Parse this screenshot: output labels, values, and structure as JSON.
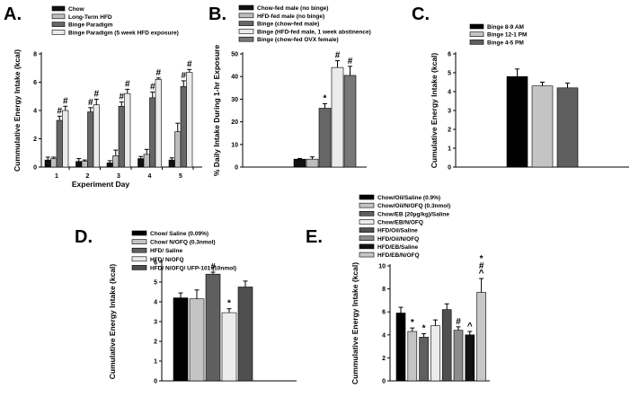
{
  "chart_data": [
    {
      "panel_label": "A.",
      "type": "bar",
      "xlabel": "Experiment Day",
      "ylabel": "Cummulative Energy Intake (kcal)",
      "ylim": [
        0,
        8
      ],
      "yticks": [
        "0",
        "2",
        "4",
        "6",
        "8"
      ],
      "categories": [
        "1",
        "2",
        "3",
        "4",
        "5"
      ],
      "series": [
        {
          "name": "Chow",
          "color": "#111111",
          "values": [
            0.5,
            0.4,
            0.3,
            0.6,
            0.5
          ],
          "errors": [
            0.2,
            0.2,
            0.15,
            0.15,
            0.15
          ]
        },
        {
          "name": "Long-Term HFD",
          "color": "#bdbdbd",
          "values": [
            0.6,
            0.4,
            0.8,
            0.9,
            2.5
          ],
          "errors": [
            0.1,
            0.1,
            0.4,
            0.35,
            0.6
          ]
        },
        {
          "name": "Binge Paradigm",
          "color": "#666666",
          "values": [
            3.3,
            3.9,
            4.3,
            4.9,
            5.7
          ],
          "errors": [
            0.3,
            0.3,
            0.3,
            0.4,
            0.4
          ]
        },
        {
          "name": "Binge Paradigm (5 week HFD exposure)",
          "color": "#ebebeb",
          "values": [
            4.0,
            4.4,
            5.2,
            6.2,
            6.7
          ],
          "errors": [
            0.3,
            0.4,
            0.3,
            0.1,
            0.2
          ]
        }
      ],
      "annotations": [
        {
          "category": "1",
          "series": "Binge Paradigm",
          "label": "#"
        },
        {
          "category": "1",
          "series": "Binge Paradigm (5 week HFD exposure)",
          "label": "#"
        },
        {
          "category": "2",
          "series": "Binge Paradigm",
          "label": "#"
        },
        {
          "category": "2",
          "series": "Binge Paradigm (5 week HFD exposure)",
          "label": "#"
        },
        {
          "category": "3",
          "series": "Binge Paradigm",
          "label": "#"
        },
        {
          "category": "3",
          "series": "Binge Paradigm (5 week HFD exposure)",
          "label": "#"
        },
        {
          "category": "4",
          "series": "Binge Paradigm",
          "label": "#"
        },
        {
          "category": "4",
          "series": "Binge Paradigm (5 week HFD exposure)",
          "label": "#"
        },
        {
          "category": "5",
          "series": "Binge Paradigm",
          "label": "#"
        },
        {
          "category": "5",
          "series": "Binge Paradigm (5 week HFD exposure)",
          "label": "#"
        }
      ]
    },
    {
      "panel_label": "B.",
      "type": "bar",
      "xlabel": "",
      "ylabel": "% Daily Intake During 1-hr Exposure",
      "ylim": [
        0,
        50
      ],
      "yticks": [
        "0",
        "10",
        "20",
        "30",
        "40",
        "50"
      ],
      "categories": [
        ""
      ],
      "series": [
        {
          "name": "Chow-fed male (no binge)",
          "color": "#111111",
          "values": [
            3.5
          ],
          "errors": [
            0.3
          ]
        },
        {
          "name": "HFD-fed male (no binge)",
          "color": "#bdbdbd",
          "values": [
            3.5
          ],
          "errors": [
            1
          ]
        },
        {
          "name": "Binge (chow-fed male)",
          "color": "#666666",
          "values": [
            26
          ],
          "errors": [
            2
          ]
        },
        {
          "name": "Binge (HFD-fed male, 1 week abstinence)",
          "color": "#ebebeb",
          "values": [
            44
          ],
          "errors": [
            3
          ]
        },
        {
          "name": "Binge (chow-fed OVX female)",
          "color": "#777777",
          "values": [
            40.5
          ],
          "errors": [
            4
          ]
        }
      ],
      "annotations": [
        {
          "series": "Binge (chow-fed male)",
          "label": "*"
        },
        {
          "series": "Binge (HFD-fed male, 1 week abstinence)",
          "label": "#"
        },
        {
          "series": "Binge (chow-fed OVX female)",
          "label": "#"
        }
      ]
    },
    {
      "panel_label": "C.",
      "type": "bar",
      "xlabel": "",
      "ylabel": "Cumulative Energy Intake (kcal)",
      "ylim": [
        0,
        6
      ],
      "yticks": [
        "0",
        "1",
        "2",
        "3",
        "4",
        "5",
        "6"
      ],
      "categories": [
        ""
      ],
      "series": [
        {
          "name": "Binge 8-9 AM",
          "color": "#000000",
          "values": [
            4.8
          ],
          "errors": [
            0.4
          ]
        },
        {
          "name": "Binge 12-1 PM",
          "color": "#c4c4c4",
          "values": [
            4.3
          ],
          "errors": [
            0.2
          ]
        },
        {
          "name": "Binge 4-5 PM",
          "color": "#5f5f5f",
          "values": [
            4.2
          ],
          "errors": [
            0.25
          ]
        }
      ]
    },
    {
      "panel_label": "D.",
      "type": "bar",
      "xlabel": "",
      "ylabel": "Cumulative Energy Intake (kcal)",
      "ylim": [
        0,
        6
      ],
      "yticks": [
        "0",
        "1",
        "2",
        "3",
        "4",
        "5",
        "6"
      ],
      "categories": [
        ""
      ],
      "series": [
        {
          "name": "Chow/ Saline (0.09%)",
          "color": "#000000",
          "values": [
            4.2
          ],
          "errors": [
            0.25
          ]
        },
        {
          "name": "Chow/ N/OFQ (0.3nmol)",
          "color": "#c4c4c4",
          "values": [
            4.15
          ],
          "errors": [
            0.45
          ]
        },
        {
          "name": "HFD/ Saline",
          "color": "#5f5f5f",
          "values": [
            5.4
          ],
          "errors": [
            0.1
          ]
        },
        {
          "name": "HFD/ N/OFQ",
          "color": "#ececec",
          "values": [
            3.45
          ],
          "errors": [
            0.2
          ]
        },
        {
          "name": "HFD/ N/OFQ/ UFP-101 (10nmol)",
          "color": "#4f4f4f",
          "values": [
            4.75
          ],
          "errors": [
            0.3
          ]
        }
      ],
      "annotations": [
        {
          "series": "HFD/ Saline",
          "label": "#"
        },
        {
          "series": "HFD/ N/OFQ",
          "label": "*"
        }
      ]
    },
    {
      "panel_label": "E.",
      "type": "bar",
      "xlabel": "",
      "ylabel": "Cummulative Energy Intake (kcal)",
      "ylim": [
        0,
        10
      ],
      "yticks": [
        "0",
        "2",
        "4",
        "6",
        "8",
        "10"
      ],
      "categories": [
        ""
      ],
      "series": [
        {
          "name": "Chow/Oil/Saline (0.9%)",
          "color": "#000000",
          "values": [
            5.9
          ],
          "errors": [
            0.5
          ]
        },
        {
          "name": "Chow/Oil/N/OFQ (0.3nmol)",
          "color": "#c4c4c4",
          "values": [
            4.3
          ],
          "errors": [
            0.3
          ]
        },
        {
          "name": "Chow/EB (20µg/kg)/Saline",
          "color": "#5f5f5f",
          "values": [
            3.8
          ],
          "errors": [
            0.3
          ]
        },
        {
          "name": "Chow/EB/N/OFQ",
          "color": "#ececec",
          "values": [
            4.8
          ],
          "errors": [
            0.5
          ]
        },
        {
          "name": "HFD/Oil/Saline",
          "color": "#4f4f4f",
          "values": [
            6.2
          ],
          "errors": [
            0.5
          ]
        },
        {
          "name": "HFD/Oil/N/OFQ",
          "color": "#8c8c8c",
          "values": [
            4.4
          ],
          "errors": [
            0.3
          ]
        },
        {
          "name": "HFD/EB/Saline",
          "color": "#111111",
          "values": [
            4.0
          ],
          "errors": [
            0.3
          ]
        },
        {
          "name": "HFD/EB/N/OFQ",
          "color": "#c8c8c8",
          "values": [
            7.7
          ],
          "errors": [
            1.2
          ]
        }
      ],
      "annotations": [
        {
          "series": "Chow/Oil/N/OFQ (0.3nmol)",
          "label": "*"
        },
        {
          "series": "Chow/EB (20µg/kg)/Saline",
          "label": "*"
        },
        {
          "series": "HFD/Oil/N/OFQ",
          "label": "#"
        },
        {
          "series": "HFD/EB/Saline",
          "label": "^"
        },
        {
          "series": "HFD/EB/N/OFQ",
          "label": "*#^"
        }
      ]
    }
  ]
}
